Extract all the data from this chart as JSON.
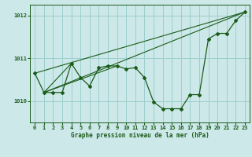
{
  "title": "Graphe pression niveau de la mer (hPa)",
  "background_color": "#cde8e8",
  "plot_bg_color": "#cde8e8",
  "line_color": "#1a5c1a",
  "grid_color": "#9ecece",
  "tick_label_color": "#1a5c1a",
  "title_color": "#1a5c1a",
  "xlim": [
    -0.5,
    23.5
  ],
  "ylim": [
    1009.5,
    1012.25
  ],
  "yticks": [
    1010,
    1011,
    1012
  ],
  "xticks": [
    0,
    1,
    2,
    3,
    4,
    5,
    6,
    7,
    8,
    9,
    10,
    11,
    12,
    13,
    14,
    15,
    16,
    17,
    18,
    19,
    20,
    21,
    22,
    23
  ],
  "hours": [
    0,
    1,
    2,
    3,
    4,
    5,
    6,
    7,
    8,
    9,
    10,
    11,
    12,
    13,
    14,
    15,
    16,
    17,
    18,
    19,
    20,
    21,
    22,
    23
  ],
  "pressure": [
    1010.65,
    1010.2,
    1010.2,
    1010.2,
    1010.88,
    1010.55,
    1010.35,
    1010.78,
    1010.82,
    1010.82,
    1010.75,
    1010.78,
    1010.55,
    1009.98,
    1009.82,
    1009.82,
    1009.82,
    1010.15,
    1010.15,
    1011.45,
    1011.58,
    1011.58,
    1011.88,
    1012.08
  ],
  "trend_lines": [
    [
      [
        0,
        1010.65
      ],
      [
        23,
        1012.08
      ]
    ],
    [
      [
        1,
        1010.2
      ],
      [
        23,
        1012.08
      ]
    ],
    [
      [
        1,
        1010.2
      ],
      [
        4,
        1010.88
      ]
    ],
    [
      [
        1,
        1010.2
      ],
      [
        9,
        1010.82
      ]
    ]
  ]
}
